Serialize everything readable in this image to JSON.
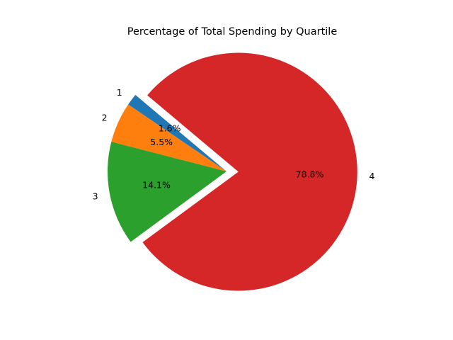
{
  "chart_data": {
    "type": "pie",
    "title": "Percentage of Total Spending by Quartile",
    "categories": [
      "1",
      "2",
      "3",
      "4"
    ],
    "values": [
      1.6,
      5.5,
      14.1,
      78.8
    ],
    "value_labels": [
      "1.6%",
      "5.5%",
      "14.1%",
      "78.8%"
    ],
    "colors": [
      "#1f77b4",
      "#ff7f0e",
      "#2ca02c",
      "#d62728"
    ],
    "exploded": [
      false,
      false,
      false,
      true
    ],
    "start_angle_deg": 140,
    "direction": "counterclockwise",
    "legend": "none"
  }
}
